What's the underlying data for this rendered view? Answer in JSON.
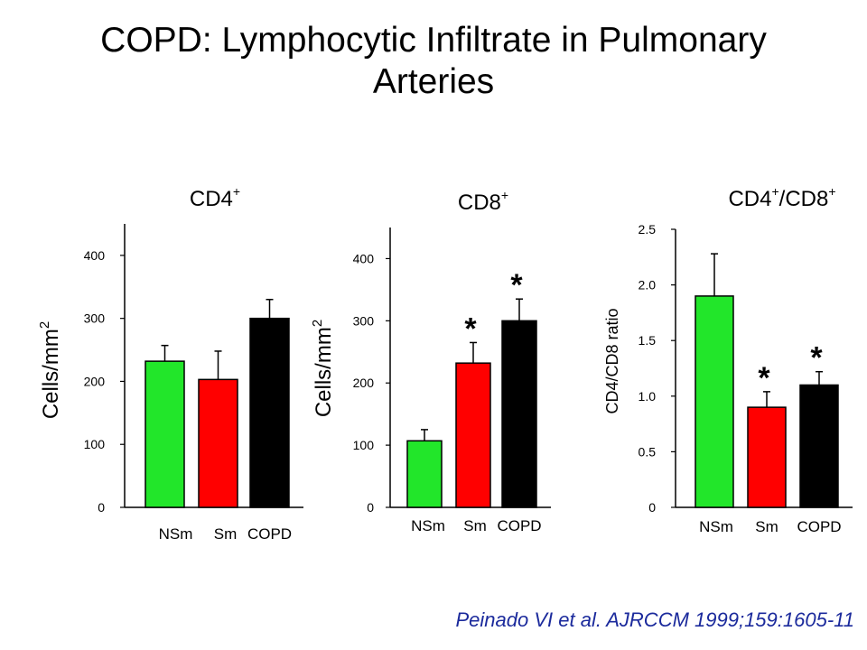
{
  "title_lines": [
    "COPD: Lymphocytic Infiltrate in Pulmonary",
    "Arteries"
  ],
  "citation": "Peinado VI et al. AJRCCM 1999;159:1605-11",
  "colors": {
    "NSm": "#22e62a",
    "Sm": "#ff0000",
    "COPD": "#000000",
    "citation": "#1b2a9c"
  },
  "chart_data": [
    {
      "type": "bar",
      "title_main": "CD4",
      "title_sup": "+",
      "ylabel_main": "Cells/mm",
      "ylabel_sup": "2",
      "categories": [
        "NSm",
        "Sm",
        "COPD"
      ],
      "values": [
        232,
        203,
        300
      ],
      "errors": [
        25,
        45,
        30
      ],
      "significant": [
        false,
        false,
        false
      ],
      "ylim": [
        0,
        450
      ],
      "yticks": [
        "0",
        "100",
        "200",
        "300",
        "400"
      ],
      "ytick_values": [
        0,
        100,
        200,
        300,
        400
      ]
    },
    {
      "type": "bar",
      "title_main": "CD8",
      "title_sup": "+",
      "ylabel_main": "Cells/mm",
      "ylabel_sup": "2",
      "categories": [
        "NSm",
        "Sm",
        "COPD"
      ],
      "values": [
        107,
        232,
        300
      ],
      "errors": [
        18,
        33,
        35
      ],
      "significant": [
        false,
        true,
        true
      ],
      "ylim": [
        0,
        450
      ],
      "yticks": [
        "0",
        "100",
        "200",
        "300",
        "400"
      ],
      "ytick_values": [
        0,
        100,
        200,
        300,
        400
      ]
    },
    {
      "type": "bar",
      "title_main": "CD4",
      "title_sup": "+",
      "title_main2": "/CD8",
      "title_sup2": "+",
      "ylabel": "CD4/CD8 ratio",
      "categories": [
        "NSm",
        "Sm",
        "COPD"
      ],
      "values": [
        1.9,
        0.9,
        1.1
      ],
      "errors": [
        0.38,
        0.14,
        0.12
      ],
      "significant": [
        false,
        true,
        true
      ],
      "ylim": [
        0,
        2.5
      ],
      "yticks": [
        "0",
        "0.5",
        "1.0",
        "1.5",
        "2.0",
        "2.5"
      ],
      "ytick_values": [
        0,
        0.5,
        1.0,
        1.5,
        2.0,
        2.5
      ]
    }
  ]
}
